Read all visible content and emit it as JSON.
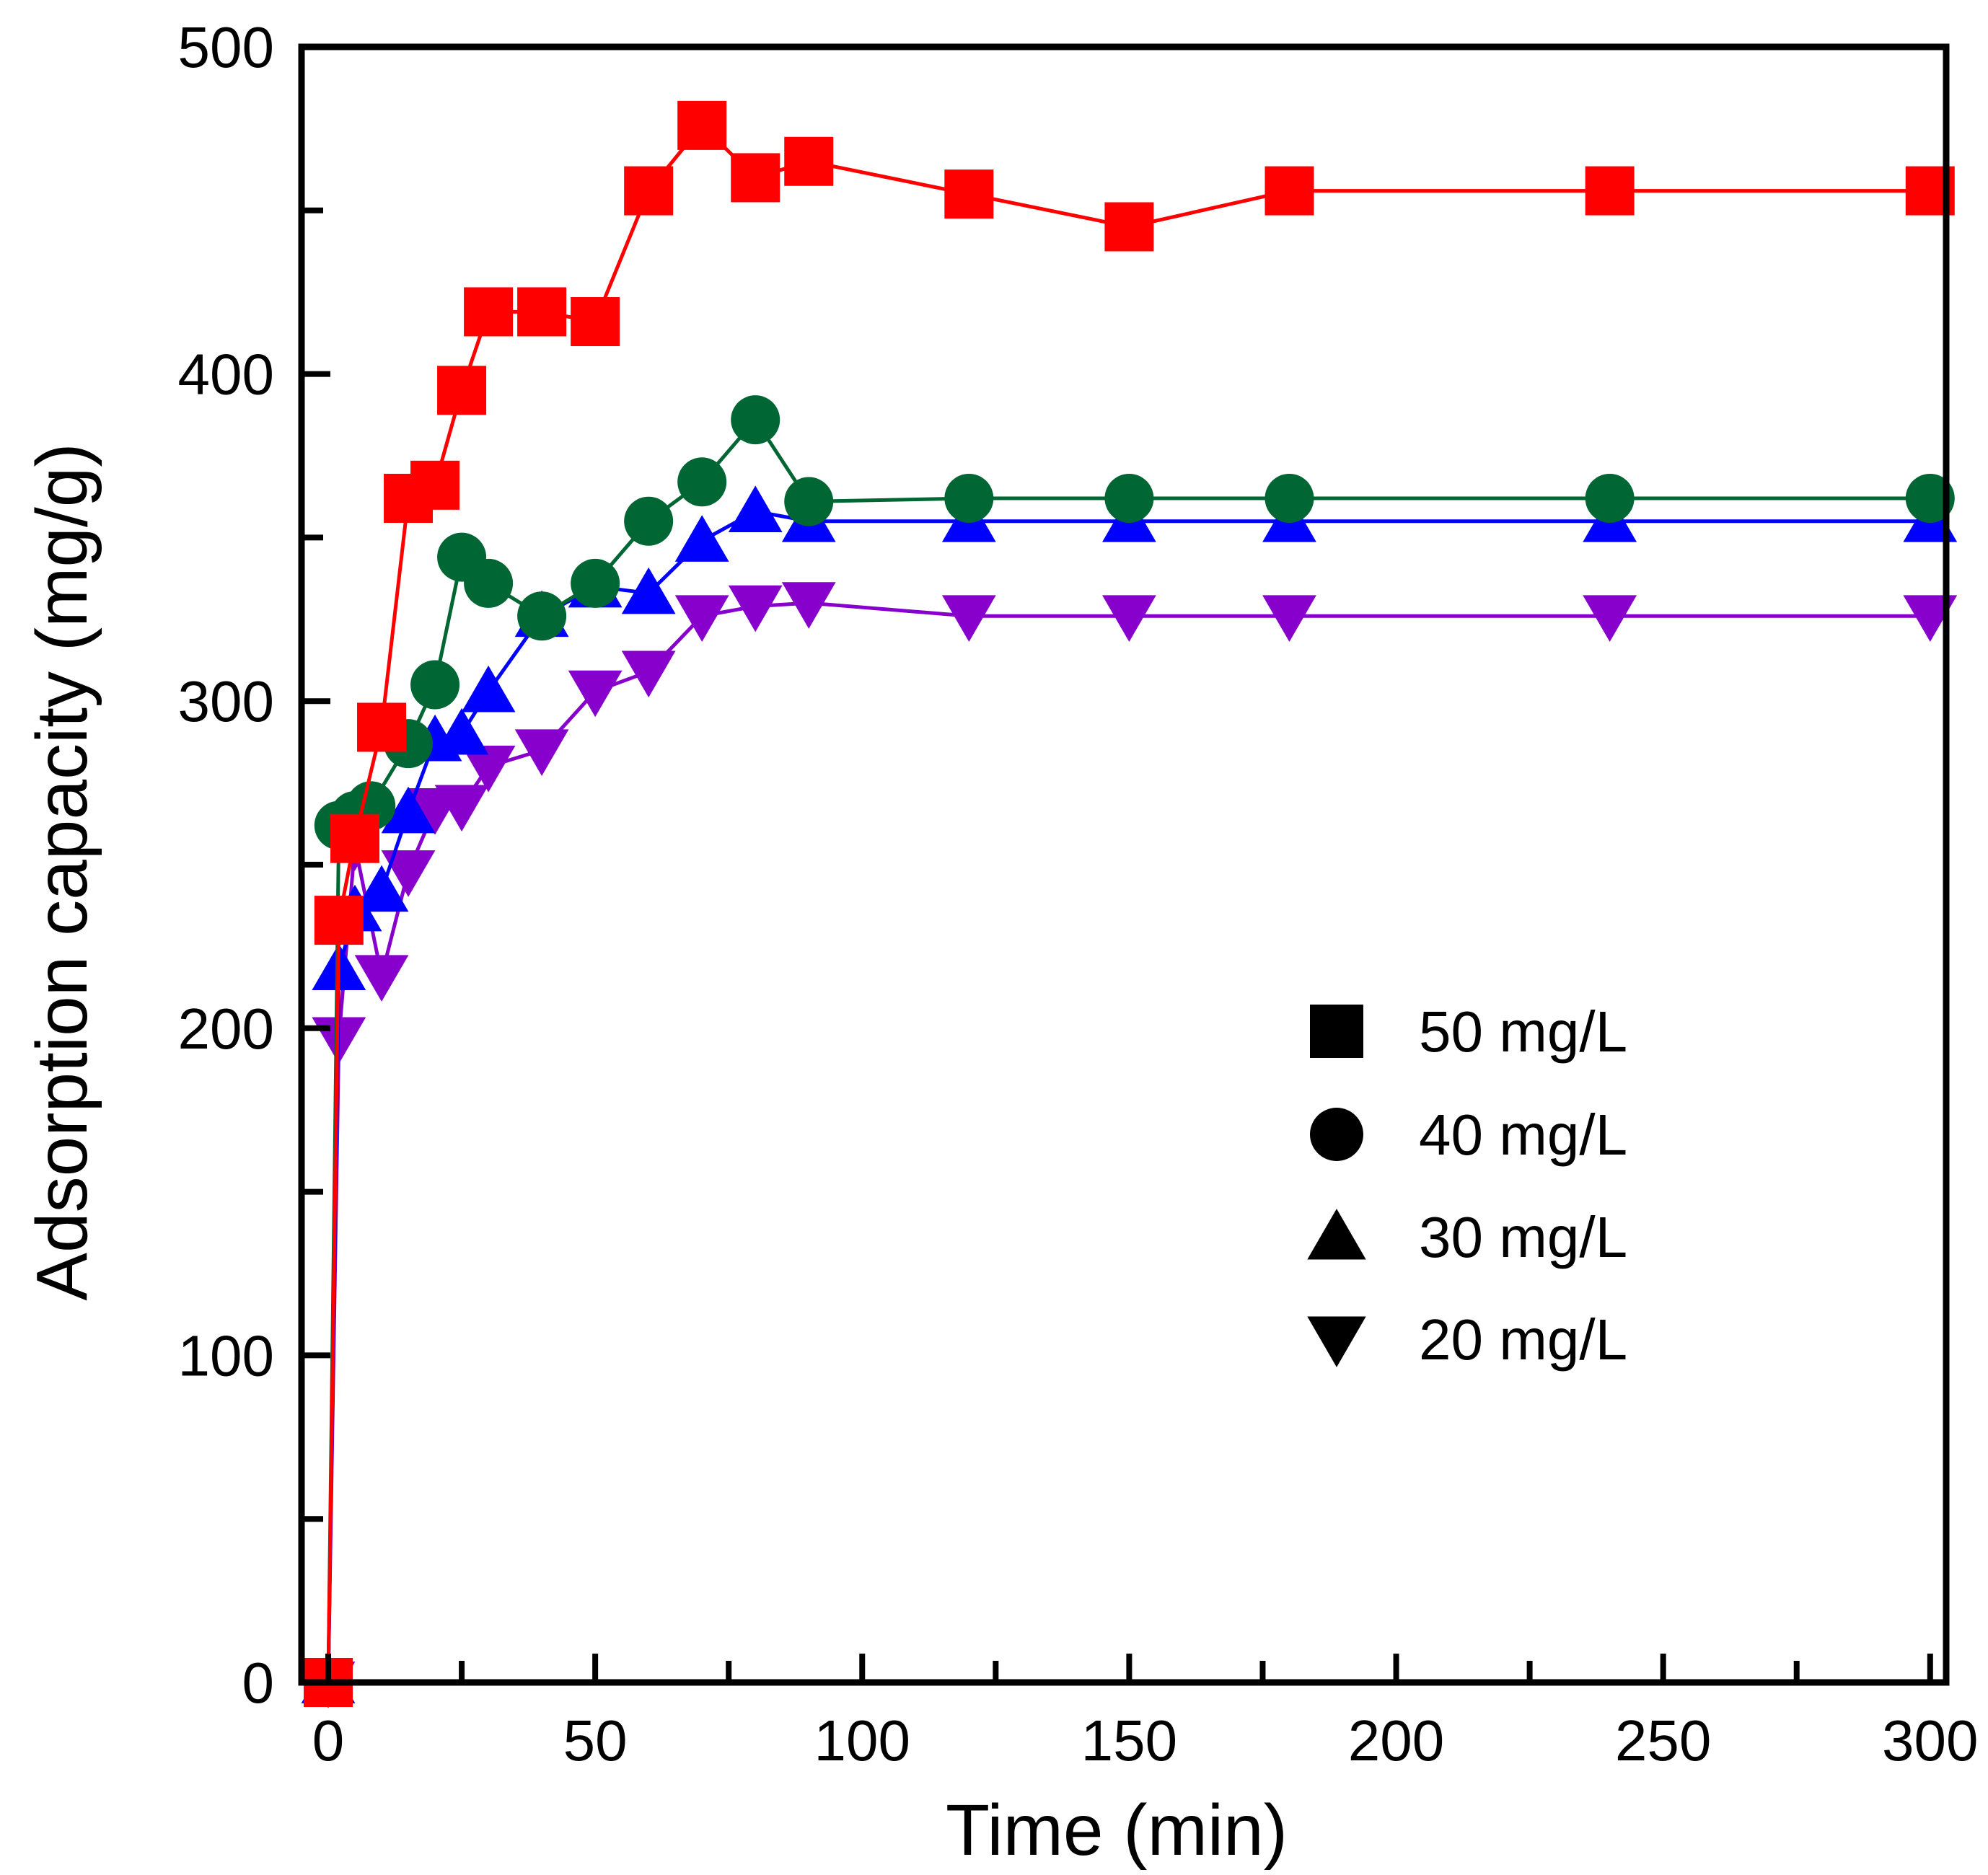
{
  "chart_data": {
    "type": "line",
    "title": "",
    "xlabel": "Time (min)",
    "ylabel": "Adsorption capacity (mg/g)",
    "xlim": [
      -5,
      303
    ],
    "ylim": [
      0,
      500
    ],
    "xticks": [
      0,
      50,
      100,
      150,
      200,
      250,
      300
    ],
    "xtick_labels": [
      "0",
      "50",
      "100",
      "150",
      "200",
      "250",
      "300"
    ],
    "yticks": [
      0,
      100,
      200,
      300,
      400,
      500
    ],
    "ytick_labels": [
      "0",
      "100",
      "200",
      "300",
      "400",
      "500"
    ],
    "grid": false,
    "legend_position": "center-right",
    "series": [
      {
        "name": "50 mg/L",
        "marker": "square",
        "color": "#ff0000",
        "x": [
          0,
          2,
          5,
          10,
          15,
          20,
          25,
          30,
          40,
          50,
          60,
          70,
          80,
          90,
          120,
          150,
          180,
          240,
          300
        ],
        "y": [
          0,
          233,
          258,
          292,
          362,
          366,
          395,
          419,
          419,
          416,
          456,
          476,
          460,
          465,
          455,
          445,
          456,
          456,
          456
        ]
      },
      {
        "name": "40 mg/L",
        "marker": "circle",
        "color": "#006633",
        "x": [
          0,
          2,
          5,
          8,
          15,
          20,
          25,
          30,
          40,
          50,
          60,
          70,
          80,
          90,
          120,
          150,
          180,
          240,
          300
        ],
        "y": [
          0,
          262,
          265,
          268,
          287,
          305,
          344,
          336,
          326,
          336,
          355,
          367,
          386,
          361,
          362,
          362,
          362,
          362,
          362
        ]
      },
      {
        "name": "30 mg/L",
        "marker": "triangle-up",
        "color": "#0000ff",
        "x": [
          0,
          2,
          5,
          10,
          15,
          20,
          25,
          30,
          40,
          50,
          60,
          70,
          80,
          90,
          120,
          150,
          180,
          240,
          300
        ],
        "y": [
          0,
          218,
          236,
          242,
          266,
          288,
          290,
          303,
          326,
          335,
          333,
          349,
          358,
          355,
          355,
          355,
          355,
          355,
          355
        ]
      },
      {
        "name": "20 mg/L",
        "marker": "triangle-down",
        "color": "#8800cc",
        "x": [
          0,
          2,
          5,
          10,
          15,
          20,
          25,
          30,
          40,
          50,
          60,
          70,
          80,
          90,
          120,
          150,
          180,
          240,
          300
        ],
        "y": [
          0,
          197,
          256,
          216,
          248,
          267,
          268,
          280,
          285,
          303,
          309,
          326,
          329,
          330,
          326,
          326,
          326,
          326,
          326
        ]
      }
    ]
  }
}
